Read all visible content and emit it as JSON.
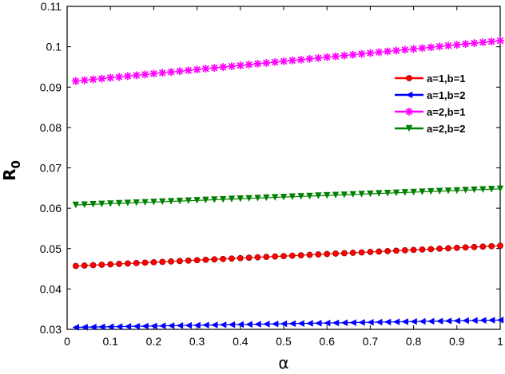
{
  "chart_data": {
    "type": "line",
    "title": "",
    "xlabel": "α",
    "ylabel": {
      "main": "R",
      "sub": "0"
    },
    "xlim": [
      0,
      1
    ],
    "ylim": [
      0.03,
      0.11
    ],
    "xticks": [
      0,
      0.1,
      0.2,
      0.3,
      0.4,
      0.5,
      0.6,
      0.7,
      0.8,
      0.9,
      1
    ],
    "xtick_labels": [
      "0",
      "0.1",
      "0.2",
      "0.3",
      "0.4",
      "0.5",
      "0.6",
      "0.7",
      "0.8",
      "0.9",
      "1"
    ],
    "yticks": [
      0.03,
      0.04,
      0.05,
      0.06,
      0.07,
      0.08,
      0.09,
      0.1,
      0.11
    ],
    "ytick_labels": [
      "0.03",
      "0.04",
      "0.05",
      "0.06",
      "0.07",
      "0.08",
      "0.09",
      "0.1",
      "0.11"
    ],
    "grid": false,
    "legend_position": "right",
    "x_range": {
      "start": 0.02,
      "end": 1.0,
      "step": 0.02
    },
    "series": [
      {
        "name": "a=1,b=1",
        "color": "#ff0000",
        "marker": "circle",
        "y_start": 0.0457,
        "y_end": 0.0507
      },
      {
        "name": "a=1,b=2",
        "color": "#0000ff",
        "marker": "triangle-left",
        "y_start": 0.0305,
        "y_end": 0.0323
      },
      {
        "name": "a=2,b=1",
        "color": "#ff00ff",
        "marker": "star",
        "y_start": 0.0915,
        "y_end": 0.1015
      },
      {
        "name": "a=2,b=2",
        "color": "#008000",
        "marker": "triangle-down",
        "y_start": 0.0608,
        "y_end": 0.0648
      }
    ]
  }
}
